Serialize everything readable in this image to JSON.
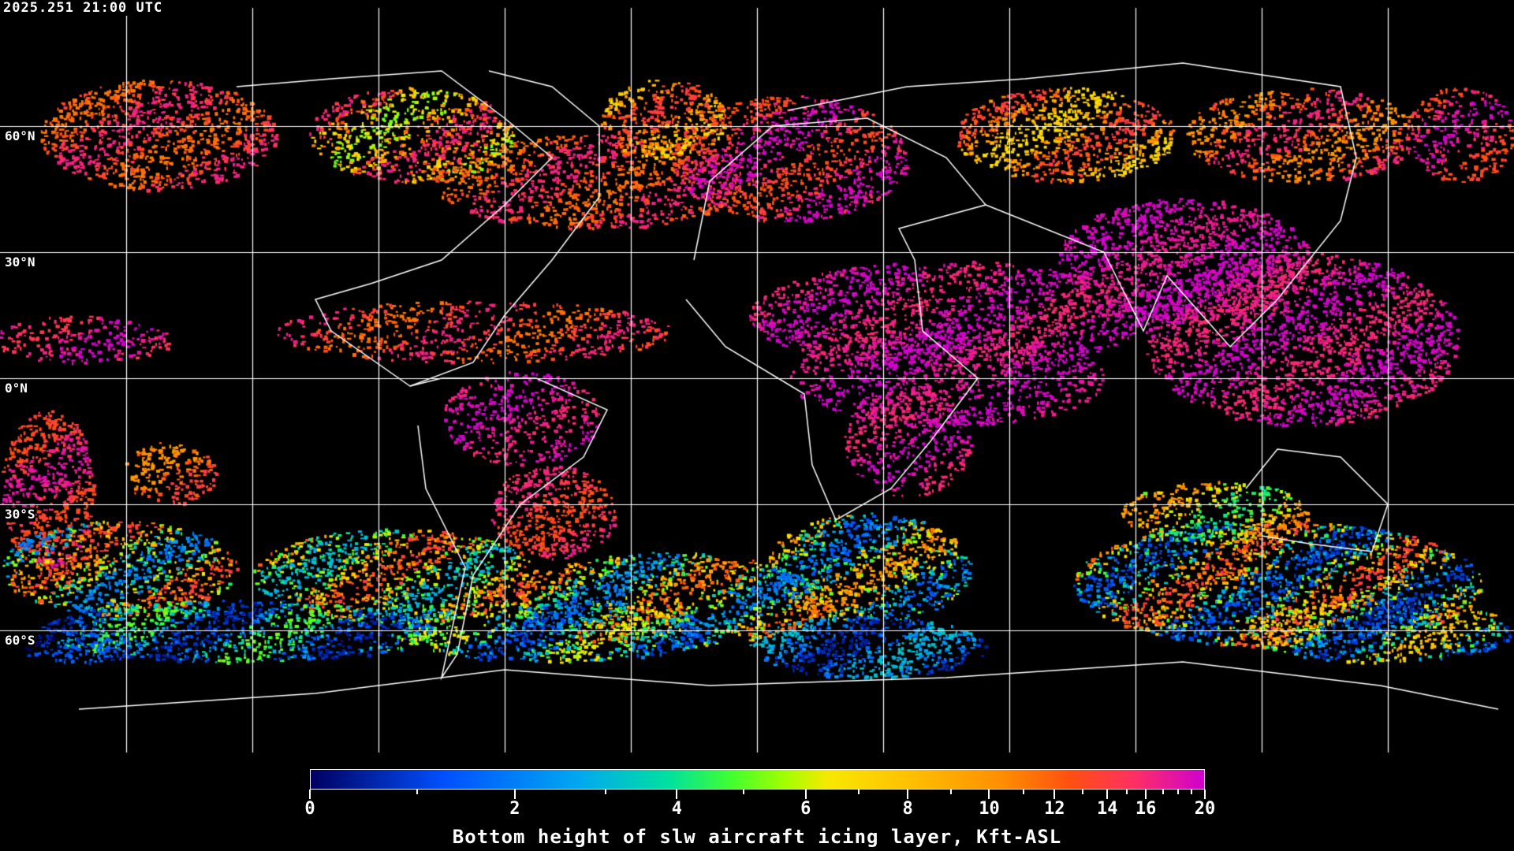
{
  "timestamp": "2025.251 21:00 UTC",
  "map": {
    "projection": "equirectangular",
    "background": "#000000",
    "coastline_color": "#ffffff",
    "gridline_color": "#ffffff",
    "grid_spacing_deg": 30,
    "lat_labels": [
      "60°N",
      "30°N",
      "0°N",
      "30°S",
      "60°S"
    ]
  },
  "colorbar": {
    "title": "Bottom height of slw aircraft icing layer, Kft-ASL",
    "tick_labels": [
      "0",
      "2",
      "4",
      "6",
      "8",
      "10",
      "12",
      "14",
      "16",
      "20"
    ],
    "range": [
      0,
      20
    ],
    "colors": [
      "#000060",
      "#0050ff",
      "#00a8f0",
      "#00e0a0",
      "#40ff30",
      "#a0ff00",
      "#f8e800",
      "#ffc000",
      "#ff9000",
      "#ff5010",
      "#ff3060",
      "#d000d0"
    ]
  }
}
